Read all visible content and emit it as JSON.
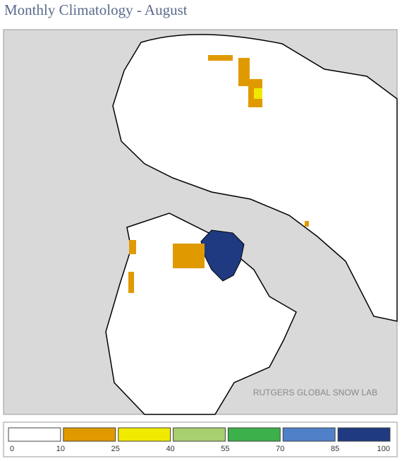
{
  "title": "Monthly Climatology - August",
  "watermark": "RUTGERS GLOBAL SNOW LAB",
  "legend": {
    "colors": [
      "#ffffff",
      "#e09a00",
      "#f0ea00",
      "#a8d070",
      "#3cb04a",
      "#5080c8",
      "#1f3a80"
    ],
    "ticks": [
      0,
      10,
      25,
      40,
      55,
      70,
      85,
      100
    ]
  }
}
